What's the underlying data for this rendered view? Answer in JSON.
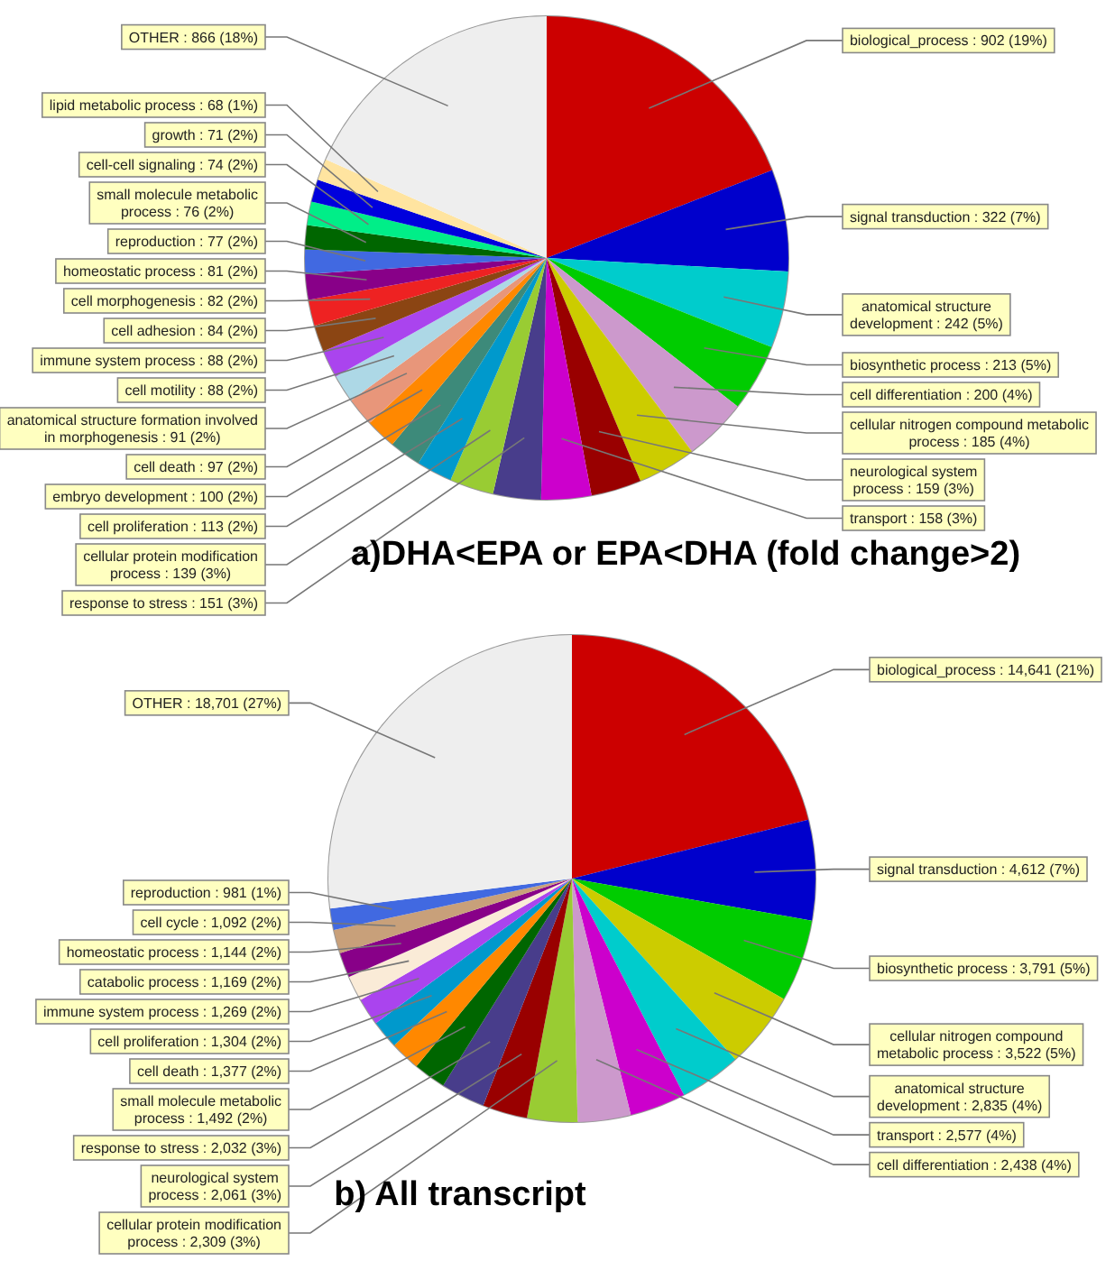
{
  "chart_data": [
    {
      "type": "pie",
      "title": "a)DHA<EPA or EPA<DHA (fold change>2)",
      "categories": [
        "biological_process",
        "signal transduction",
        "anatomical structure development",
        "biosynthetic process",
        "cell differentiation",
        "cellular nitrogen compound metabolic process",
        "neurological system process",
        "transport",
        "response to stress",
        "cellular protein modification process",
        "cell proliferation",
        "embryo development",
        "cell death",
        "anatomical structure formation involved in morphogenesis",
        "cell motility",
        "immune system process",
        "cell adhesion",
        "cell morphogenesis",
        "homeostatic process",
        "reproduction",
        "small molecule metabolic process",
        "cell-cell signaling",
        "growth",
        "lipid metabolic process",
        "OTHER"
      ],
      "values": [
        902,
        322,
        242,
        213,
        200,
        185,
        159,
        158,
        151,
        139,
        113,
        100,
        97,
        91,
        88,
        88,
        84,
        82,
        81,
        77,
        76,
        74,
        71,
        68,
        866
      ],
      "value_labels": [
        "902 (19%)",
        "322 (7%)",
        "242 (5%)",
        "213 (5%)",
        "200 (4%)",
        "185 (4%)",
        "159 (3%)",
        "158 (3%)",
        "151 (3%)",
        "139 (3%)",
        "113 (2%)",
        "100 (2%)",
        "97 (2%)",
        "91 (2%)",
        "88 (2%)",
        "88 (2%)",
        "84 (2%)",
        "82 (2%)",
        "81 (2%)",
        "77 (2%)",
        "76 (2%)",
        "74 (2%)",
        "71 (2%)",
        "68 (1%)",
        "866 (18%)"
      ],
      "colors": [
        "#cc0000",
        "#0000cc",
        "#00cccc",
        "#00cc00",
        "#cc99cc",
        "#cccc00",
        "#990000",
        "#cc00cc",
        "#483d8b",
        "#99cc33",
        "#0099cc",
        "#3d8a7a",
        "#ff8800",
        "#e8967a",
        "#add8e6",
        "#aa44ee",
        "#8b4513",
        "#ee2222",
        "#880088",
        "#4169e1",
        "#006600",
        "#00ee88",
        "#0000dd",
        "#ffe4a0",
        "#eeeeee"
      ],
      "legend": false
    },
    {
      "type": "pie",
      "title": "b) All transcript",
      "categories": [
        "biological_process",
        "signal transduction",
        "biosynthetic process",
        "cellular nitrogen compound metabolic process",
        "anatomical structure development",
        "transport",
        "cell differentiation",
        "cellular protein modification process",
        "neurological system process",
        "response to stress",
        "small molecule metabolic process",
        "cell death",
        "cell proliferation",
        "immune system process",
        "catabolic process",
        "homeostatic process",
        "cell cycle",
        "reproduction",
        "OTHER"
      ],
      "values": [
        14641,
        4612,
        3791,
        3522,
        2835,
        2577,
        2438,
        2309,
        2061,
        2032,
        1492,
        1377,
        1304,
        1269,
        1169,
        1144,
        1092,
        981,
        18701
      ],
      "value_labels": [
        "14,641 (21%)",
        "4,612 (7%)",
        "3,791 (5%)",
        "3,522 (5%)",
        "2,835 (4%)",
        "2,577 (4%)",
        "2,438 (4%)",
        "2,309 (3%)",
        "2,061 (3%)",
        "2,032 (3%)",
        "1,492 (2%)",
        "1,377 (2%)",
        "1,304 (2%)",
        "1,269 (2%)",
        "1,169 (2%)",
        "1,144 (2%)",
        "1,092 (2%)",
        "981 (1%)",
        "18,701 (27%)"
      ],
      "colors": [
        "#cc0000",
        "#0000cc",
        "#00cc00",
        "#cccc00",
        "#00cccc",
        "#cc00cc",
        "#cc99cc",
        "#99cc33",
        "#990000",
        "#483d8b",
        "#006600",
        "#ff8800",
        "#0099cc",
        "#aa44ee",
        "#faebd7",
        "#880088",
        "#c8a07a",
        "#4169e1",
        "#eeeeee"
      ],
      "legend": false
    }
  ]
}
